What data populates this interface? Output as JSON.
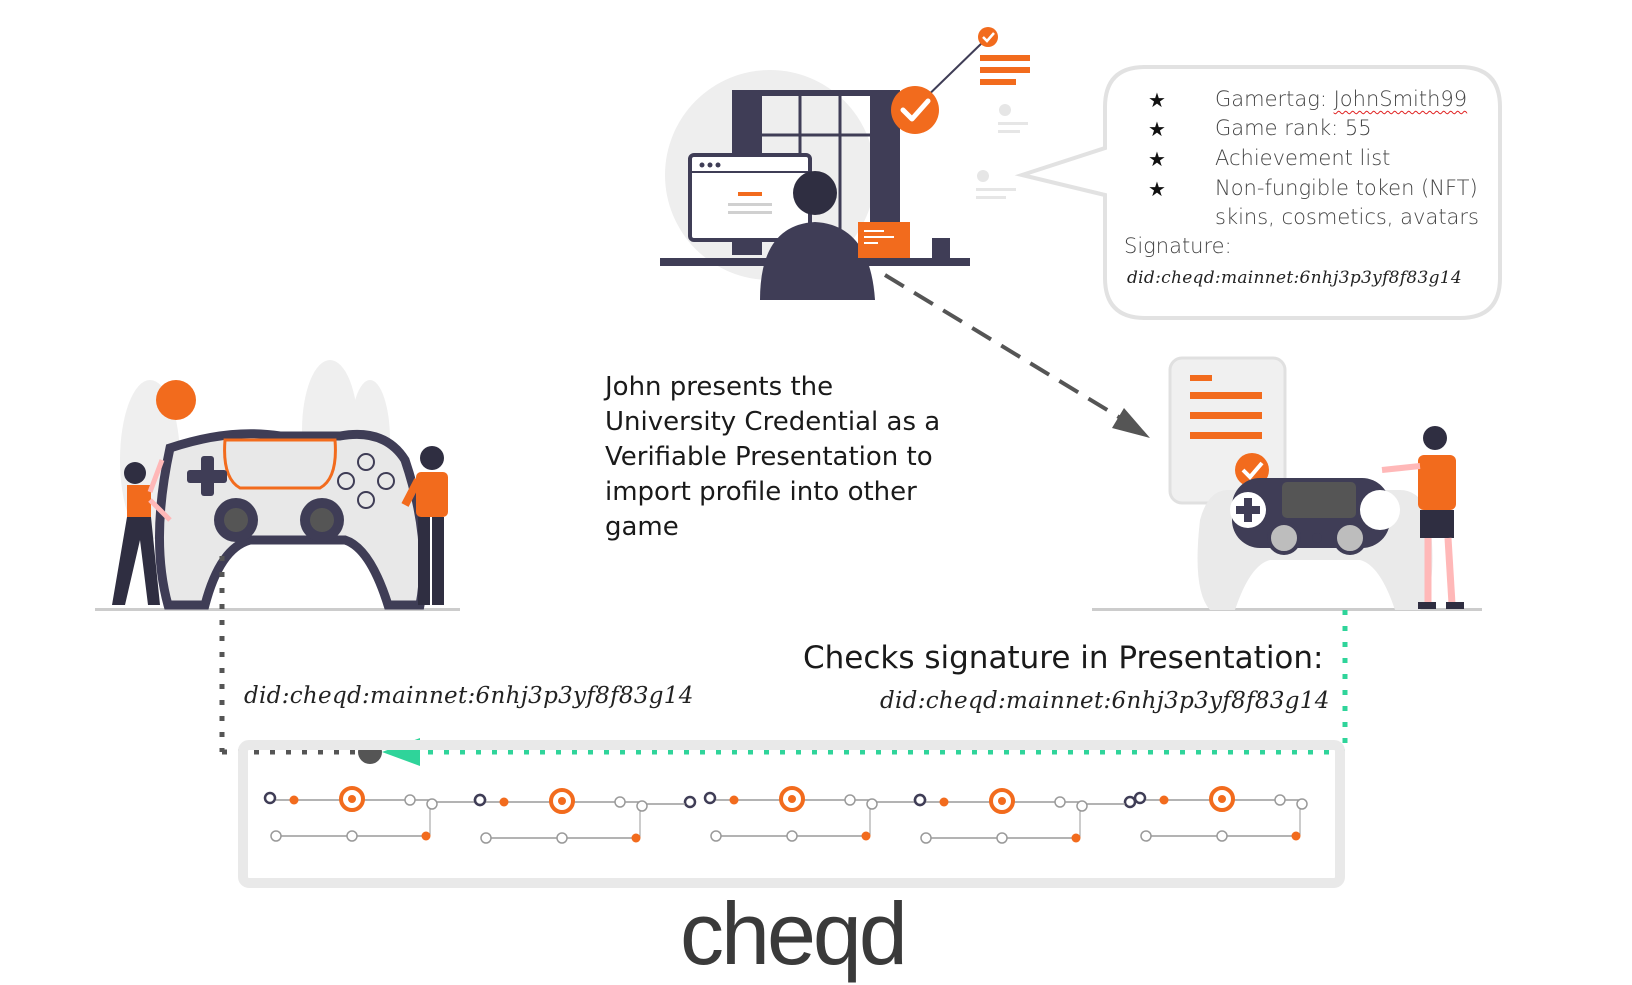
{
  "profile_card": {
    "items": [
      {
        "label": "Gamertag: ",
        "value": "JohnSmith99"
      },
      {
        "label": "Game rank: 55",
        "value": ""
      },
      {
        "label": "Achievement list",
        "value": ""
      },
      {
        "label": "Non-fungible token (NFT)",
        "value": ""
      }
    ],
    "item_continuation": "skins, cosmetics, avatars",
    "bullet": "★",
    "signature_label": "Signature:",
    "signature_did": "did:cheqd:mainnet:6nhj3p3yf8f83g14"
  },
  "caption": "John presents the\nUniversity Credential as a\nVerifiable Presentation to\nimport profile into other\ngame",
  "verifier": {
    "heading": "Checks signature in Presentation:",
    "did": "did:cheqd:mainnet:6nhj3p3yf8f83g14"
  },
  "holder_did": "did:cheqd:mainnet:6nhj3p3yf8f83g14",
  "logo": "cheqd",
  "colors": {
    "orange": "#f26b1d",
    "dark": "#3f3d56",
    "green": "#2fd49a",
    "grey": "#e6e6e6"
  },
  "icons": [
    "check-icon",
    "gamepad-icon",
    "person-icon",
    "document-icon",
    "monitor-icon",
    "arrow-icon"
  ]
}
